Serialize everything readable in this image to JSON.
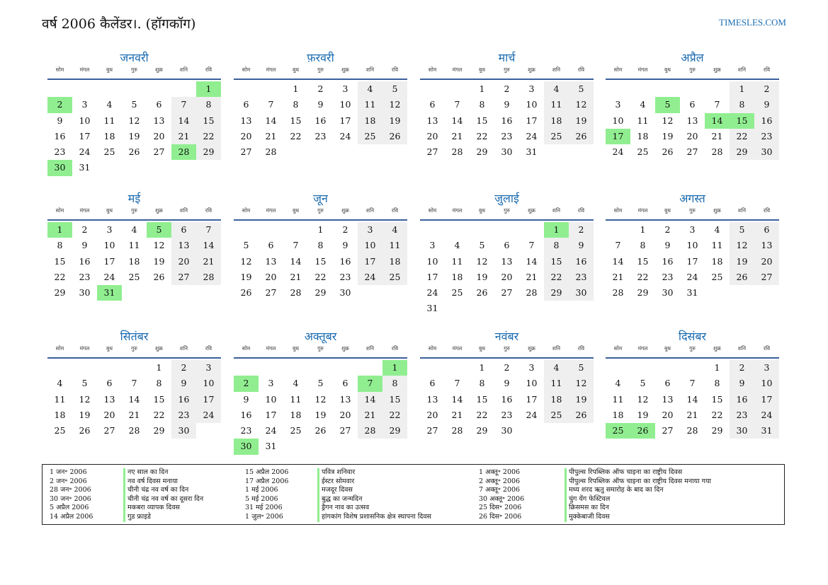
{
  "header": {
    "title": "वर्ष 2006 कैलेंडर।. (हॉगकॉग)",
    "brand": "TIMESLES.COM"
  },
  "weekdays": [
    "सोम",
    "मंगल",
    "बुध",
    "गुरु",
    "शुक्र",
    "शनि",
    "रवि"
  ],
  "colors": {
    "accent": "#1a6bb0",
    "holiday": "#90ee90",
    "weekend": "#efefef",
    "rule": "#3a5f9a"
  },
  "months": [
    {
      "name": "जनवरी",
      "offset": 6,
      "days": 31,
      "holidays": [
        1,
        2,
        28,
        30
      ]
    },
    {
      "name": "फ़रवरी",
      "offset": 2,
      "days": 28,
      "holidays": []
    },
    {
      "name": "मार्च",
      "offset": 2,
      "days": 31,
      "holidays": []
    },
    {
      "name": "अप्रैल",
      "offset": 5,
      "days": 30,
      "holidays": [
        5,
        14,
        15,
        17
      ]
    },
    {
      "name": "मई",
      "offset": 0,
      "days": 31,
      "holidays": [
        1,
        5,
        31
      ]
    },
    {
      "name": "जून",
      "offset": 3,
      "days": 30,
      "holidays": []
    },
    {
      "name": "जुलाई",
      "offset": 5,
      "days": 31,
      "holidays": [
        1
      ]
    },
    {
      "name": "अगस्त",
      "offset": 1,
      "days": 31,
      "holidays": []
    },
    {
      "name": "सितंबर",
      "offset": 4,
      "days": 30,
      "holidays": []
    },
    {
      "name": "अक्तूबर",
      "offset": 6,
      "days": 31,
      "holidays": [
        1,
        2,
        7,
        30
      ]
    },
    {
      "name": "नवंबर",
      "offset": 2,
      "days": 30,
      "holidays": []
    },
    {
      "name": "दिसंबर",
      "offset": 4,
      "days": 31,
      "holidays": [
        25,
        26
      ]
    }
  ],
  "legend": {
    "col1_dates": [
      "1 जन॰ 2006",
      "2 जन॰ 2006",
      "28 जन॰ 2006",
      "30 जन॰ 2006",
      "5 अप्रैल 2006",
      "14 अप्रैल 2006"
    ],
    "col1_names": [
      "नए साल का दिन",
      "नव वर्ष दिवस मनाया",
      "चीनी चंद्र नव वर्ष का दिन",
      "चीनी चंद्र नव वर्ष का दूसरा दिन",
      "मकबरा व्यापक दिवस",
      "गुड फ्राइडे"
    ],
    "col2_dates": [
      "15 अप्रैल 2006",
      "17 अप्रैल 2006",
      "1 मई 2006",
      "5 मई 2006",
      "31 मई 2006",
      "1 जुल॰ 2006"
    ],
    "col2_names": [
      "पवित्र शनिवार",
      "ईस्टर सोमवार",
      "मजदूर दिवस",
      "बुद्ध का जन्मदिन",
      "ड्रैगन नाव का उत्सव",
      "हांगकांग विशेष प्रशासनिक क्षेत्र स्थापना दिवस"
    ],
    "col3_dates": [
      "1 अक्तू॰ 2006",
      "2 अक्तू॰ 2006",
      "7 अक्तू॰ 2006",
      "30 अक्तू॰ 2006",
      "25 दिस॰ 2006",
      "26 दिस॰ 2006"
    ],
    "col3_names": [
      "पीपुल्स रिपब्लिक ऑफ चाइना का राष्ट्रीय दिवस",
      "पीपुल्स रिपब्लिक ऑफ चाइना का राष्ट्रीय दिवस मनाया गया",
      "मध्य शरद ऋतु समारोह के बाद का दिन",
      "चुंग येंग फेस्टिवल",
      "क्रिसमस का दिन",
      "मुक्केबाजी दिवस"
    ]
  }
}
